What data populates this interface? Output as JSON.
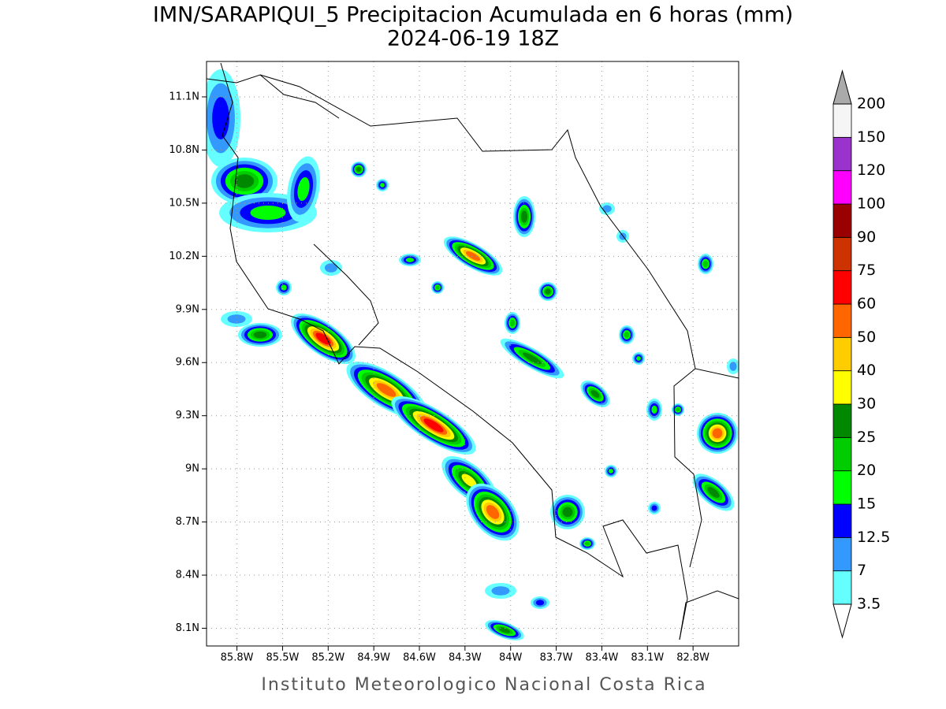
{
  "title": "IMN/SARAPIQUI_5 Precipitacion Acumulada en 6 horas (mm)",
  "subtitle": "2024-06-19 18Z",
  "footer": "Instituto Meteorologico Nacional Costa Rica",
  "map": {
    "lon_range": [
      -86.0,
      -82.5
    ],
    "lat_range": [
      8.0,
      11.3
    ],
    "grid": true,
    "lon_ticks": [
      {
        "value": -85.8,
        "label": "85.8W"
      },
      {
        "value": -85.5,
        "label": "85.5W"
      },
      {
        "value": -85.2,
        "label": "85.2W"
      },
      {
        "value": -84.9,
        "label": "84.9W"
      },
      {
        "value": -84.6,
        "label": "84.6W"
      },
      {
        "value": -84.3,
        "label": "84.3W"
      },
      {
        "value": -84.0,
        "label": "84W"
      },
      {
        "value": -83.7,
        "label": "83.7W"
      },
      {
        "value": -83.4,
        "label": "83.4W"
      },
      {
        "value": -83.1,
        "label": "83.1W"
      },
      {
        "value": -82.8,
        "label": "82.8W"
      }
    ],
    "lat_ticks": [
      {
        "value": 8.1,
        "label": "8.1N"
      },
      {
        "value": 8.4,
        "label": "8.4N"
      },
      {
        "value": 8.7,
        "label": "8.7N"
      },
      {
        "value": 9.0,
        "label": "9N"
      },
      {
        "value": 9.3,
        "label": "9.3N"
      },
      {
        "value": 9.6,
        "label": "9.6N"
      },
      {
        "value": 9.9,
        "label": "9.9N"
      },
      {
        "value": 10.2,
        "label": "10.2N"
      },
      {
        "value": 10.5,
        "label": "10.5N"
      },
      {
        "value": 10.8,
        "label": "10.8N"
      },
      {
        "value": 11.1,
        "label": "11.1N"
      }
    ]
  },
  "colorbar": {
    "levels": [
      3.5,
      7,
      12.5,
      15,
      20,
      25,
      30,
      40,
      50,
      60,
      75,
      90,
      100,
      120,
      150,
      200
    ],
    "colors": [
      "#66ffff",
      "#3399ff",
      "#0000ff",
      "#00ff00",
      "#00cc00",
      "#008800",
      "#ffff00",
      "#ffcc00",
      "#ff6600",
      "#ff0000",
      "#cc3300",
      "#990000",
      "#ff00ff",
      "#9933cc",
      "#f5f5f5"
    ],
    "over_color": "#aaaaaa",
    "under_color": "#ffffff"
  }
}
